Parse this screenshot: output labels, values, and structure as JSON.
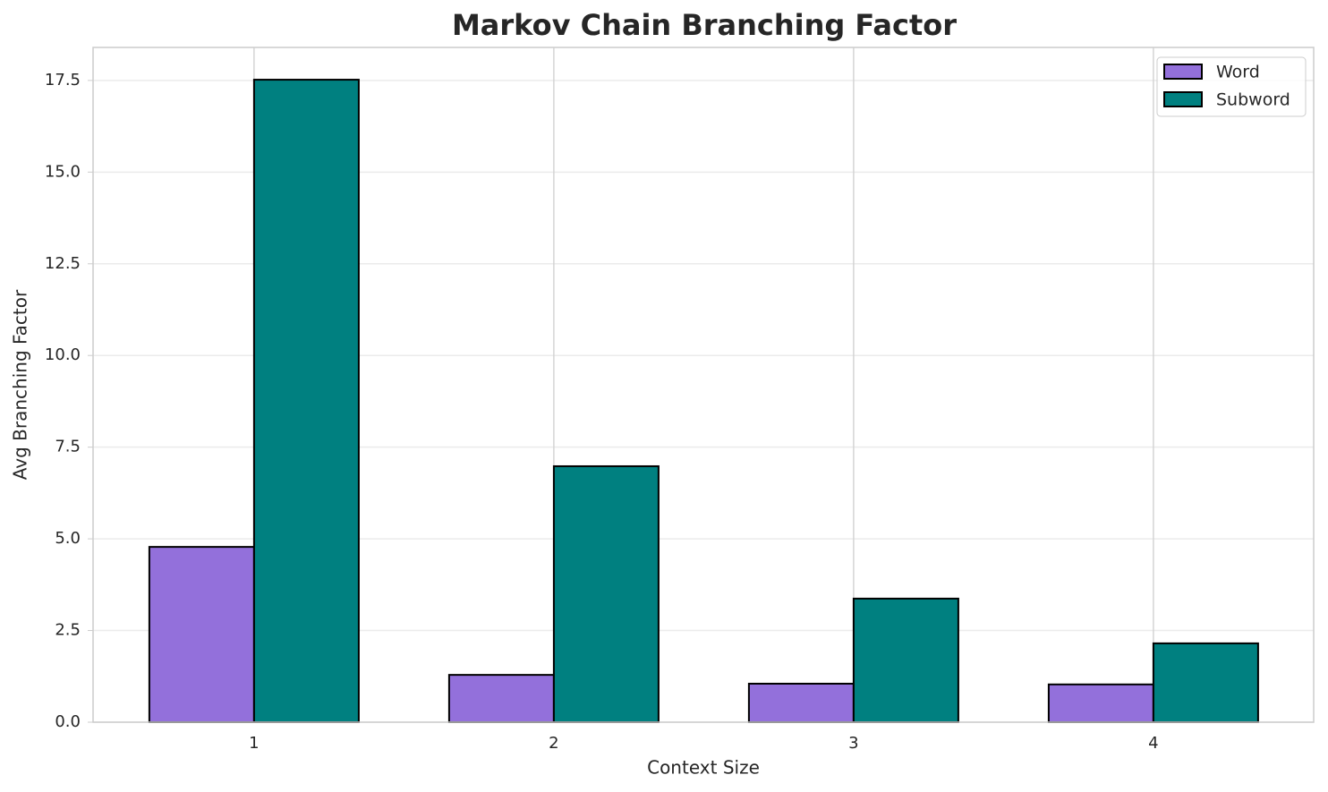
{
  "chart_data": {
    "type": "bar",
    "title": "Markov Chain Branching Factor",
    "x_label": "Context Size",
    "y_label": "Avg Branching Factor",
    "categories": [
      "1",
      "2",
      "3",
      "4"
    ],
    "series": [
      {
        "name": "Word",
        "color": "#9370db",
        "values": [
          4.78,
          1.29,
          1.05,
          1.03
        ]
      },
      {
        "name": "Subword",
        "color": "#008080",
        "values": [
          17.52,
          6.98,
          3.37,
          2.15
        ]
      }
    ],
    "ylim": [
      0,
      18.4
    ],
    "yticks": [
      {
        "value": 0,
        "label": "0.0"
      },
      {
        "value": 2.5,
        "label": "2.5"
      },
      {
        "value": 5,
        "label": "5.0"
      },
      {
        "value": 7.5,
        "label": "7.5"
      },
      {
        "value": 10,
        "label": "10.0"
      },
      {
        "value": 12.5,
        "label": "12.5"
      },
      {
        "value": 15,
        "label": "15.0"
      },
      {
        "value": 17.5,
        "label": "17.5"
      }
    ],
    "grid": true,
    "legend": "upper right"
  }
}
